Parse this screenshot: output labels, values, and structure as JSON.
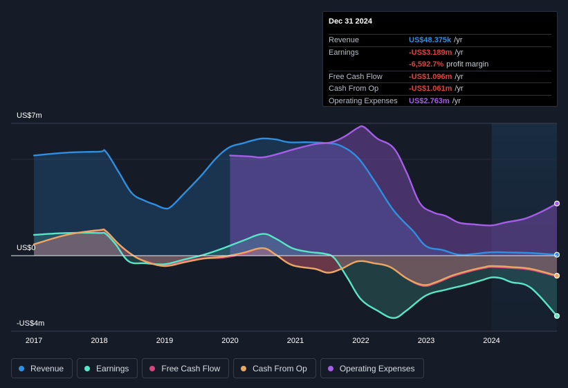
{
  "chart_data": {
    "type": "area",
    "title": "",
    "xlabel": "",
    "ylabel": "",
    "ylim": [
      -4,
      7
    ],
    "ytick_labels": [
      {
        "value": 7,
        "label": "US$7m"
      },
      {
        "value": 0,
        "label": "US$0"
      },
      {
        "value": -4,
        "label": "-US$4m"
      }
    ],
    "xticks": [
      {
        "value": 2017,
        "label": "2017"
      },
      {
        "value": 2018,
        "label": "2018"
      },
      {
        "value": 2019,
        "label": "2019"
      },
      {
        "value": 2020,
        "label": "2020"
      },
      {
        "value": 2021,
        "label": "2021"
      },
      {
        "value": 2022,
        "label": "2022"
      },
      {
        "value": 2023,
        "label": "2023"
      },
      {
        "value": 2024,
        "label": "2024"
      }
    ],
    "xlim": [
      2016.65,
      2025.0
    ],
    "highlight_start": 2024.0,
    "series": [
      {
        "name": "Revenue",
        "key": "revenue",
        "color": "#2f8fe0",
        "points": [
          [
            2017.0,
            5.3
          ],
          [
            2017.5,
            5.45
          ],
          [
            2018.0,
            5.5
          ],
          [
            2018.1,
            5.5
          ],
          [
            2018.3,
            4.4
          ],
          [
            2018.5,
            3.3
          ],
          [
            2018.7,
            2.9
          ],
          [
            2018.85,
            2.7
          ],
          [
            2019.0,
            2.5
          ],
          [
            2019.1,
            2.6
          ],
          [
            2019.3,
            3.3
          ],
          [
            2019.55,
            4.2
          ],
          [
            2019.8,
            5.2
          ],
          [
            2020.0,
            5.75
          ],
          [
            2020.2,
            5.95
          ],
          [
            2020.35,
            6.1
          ],
          [
            2020.5,
            6.2
          ],
          [
            2020.7,
            6.15
          ],
          [
            2020.9,
            6.0
          ],
          [
            2021.2,
            6.0
          ],
          [
            2021.5,
            5.95
          ],
          [
            2021.7,
            5.8
          ],
          [
            2021.95,
            5.2
          ],
          [
            2022.2,
            4.0
          ],
          [
            2022.5,
            2.4
          ],
          [
            2022.8,
            1.3
          ],
          [
            2023.0,
            0.5
          ],
          [
            2023.25,
            0.3
          ],
          [
            2023.5,
            0.05
          ],
          [
            2023.75,
            0.1
          ],
          [
            2024.0,
            0.18
          ],
          [
            2024.3,
            0.17
          ],
          [
            2024.6,
            0.14
          ],
          [
            2025.0,
            0.048
          ]
        ]
      },
      {
        "name": "Earnings",
        "key": "earnings",
        "color": "#59e6c7",
        "points": [
          [
            2017.0,
            1.1
          ],
          [
            2017.5,
            1.2
          ],
          [
            2018.0,
            1.2
          ],
          [
            2018.1,
            1.15
          ],
          [
            2018.25,
            0.6
          ],
          [
            2018.45,
            -0.3
          ],
          [
            2018.7,
            -0.4
          ],
          [
            2019.0,
            -0.45
          ],
          [
            2019.3,
            -0.2
          ],
          [
            2019.6,
            0.05
          ],
          [
            2019.9,
            0.4
          ],
          [
            2020.2,
            0.8
          ],
          [
            2020.5,
            1.15
          ],
          [
            2020.7,
            0.9
          ],
          [
            2020.95,
            0.4
          ],
          [
            2021.2,
            0.2
          ],
          [
            2021.45,
            0.1
          ],
          [
            2021.6,
            -0.15
          ],
          [
            2021.8,
            -1.2
          ],
          [
            2022.0,
            -2.3
          ],
          [
            2022.25,
            -2.9
          ],
          [
            2022.5,
            -3.3
          ],
          [
            2022.7,
            -2.9
          ],
          [
            2023.0,
            -2.1
          ],
          [
            2023.3,
            -1.8
          ],
          [
            2023.6,
            -1.55
          ],
          [
            2023.85,
            -1.3
          ],
          [
            2024.0,
            -1.15
          ],
          [
            2024.15,
            -1.2
          ],
          [
            2024.3,
            -1.4
          ],
          [
            2024.6,
            -1.7
          ],
          [
            2025.0,
            -3.19
          ]
        ]
      },
      {
        "name": "Free Cash Flow",
        "key": "fcf",
        "color": "#d6457f",
        "points": [
          [
            2017.0,
            0.6
          ],
          [
            2017.5,
            1.1
          ],
          [
            2018.0,
            1.35
          ],
          [
            2018.1,
            1.3
          ],
          [
            2018.3,
            0.6
          ],
          [
            2018.5,
            0.05
          ],
          [
            2018.7,
            -0.3
          ],
          [
            2019.0,
            -0.5
          ],
          [
            2019.3,
            -0.3
          ],
          [
            2019.6,
            -0.15
          ],
          [
            2019.9,
            -0.1
          ],
          [
            2020.2,
            0.1
          ],
          [
            2020.5,
            0.4
          ],
          [
            2020.7,
            0.05
          ],
          [
            2020.95,
            -0.5
          ],
          [
            2021.3,
            -0.7
          ],
          [
            2021.5,
            -0.9
          ],
          [
            2021.7,
            -0.7
          ],
          [
            2021.95,
            -0.3
          ],
          [
            2022.2,
            -0.4
          ],
          [
            2022.45,
            -0.6
          ],
          [
            2022.7,
            -1.2
          ],
          [
            2022.95,
            -1.6
          ],
          [
            2023.15,
            -1.45
          ],
          [
            2023.4,
            -1.1
          ],
          [
            2023.7,
            -0.8
          ],
          [
            2023.9,
            -0.65
          ],
          [
            2024.0,
            -0.6
          ],
          [
            2024.3,
            -0.65
          ],
          [
            2024.6,
            -0.75
          ],
          [
            2025.0,
            -1.1
          ]
        ]
      },
      {
        "name": "Cash From Op",
        "key": "cfo",
        "color": "#e8a863",
        "points": [
          [
            2017.0,
            0.6
          ],
          [
            2017.5,
            1.1
          ],
          [
            2018.0,
            1.35
          ],
          [
            2018.1,
            1.3
          ],
          [
            2018.3,
            0.6
          ],
          [
            2018.5,
            0.05
          ],
          [
            2018.7,
            -0.3
          ],
          [
            2019.0,
            -0.55
          ],
          [
            2019.3,
            -0.35
          ],
          [
            2019.6,
            -0.15
          ],
          [
            2019.9,
            -0.05
          ],
          [
            2020.2,
            0.15
          ],
          [
            2020.5,
            0.4
          ],
          [
            2020.7,
            0.05
          ],
          [
            2020.95,
            -0.5
          ],
          [
            2021.3,
            -0.7
          ],
          [
            2021.5,
            -0.9
          ],
          [
            2021.7,
            -0.7
          ],
          [
            2021.95,
            -0.3
          ],
          [
            2022.2,
            -0.4
          ],
          [
            2022.45,
            -0.6
          ],
          [
            2022.7,
            -1.2
          ],
          [
            2022.95,
            -1.55
          ],
          [
            2023.15,
            -1.4
          ],
          [
            2023.4,
            -1.05
          ],
          [
            2023.7,
            -0.75
          ],
          [
            2023.9,
            -0.6
          ],
          [
            2024.0,
            -0.55
          ],
          [
            2024.3,
            -0.6
          ],
          [
            2024.6,
            -0.7
          ],
          [
            2025.0,
            -1.06
          ]
        ]
      },
      {
        "name": "Operating Expenses",
        "key": "opex",
        "color": "#a55fe6",
        "points": [
          [
            2020.0,
            5.3
          ],
          [
            2020.3,
            5.25
          ],
          [
            2020.5,
            5.2
          ],
          [
            2020.75,
            5.4
          ],
          [
            2021.0,
            5.65
          ],
          [
            2021.3,
            5.9
          ],
          [
            2021.55,
            6.0
          ],
          [
            2021.75,
            6.3
          ],
          [
            2021.95,
            6.75
          ],
          [
            2022.05,
            6.8
          ],
          [
            2022.25,
            6.2
          ],
          [
            2022.5,
            5.7
          ],
          [
            2022.7,
            4.4
          ],
          [
            2022.9,
            2.8
          ],
          [
            2023.1,
            2.3
          ],
          [
            2023.3,
            2.1
          ],
          [
            2023.5,
            1.75
          ],
          [
            2023.75,
            1.65
          ],
          [
            2024.0,
            1.6
          ],
          [
            2024.2,
            1.75
          ],
          [
            2024.5,
            1.95
          ],
          [
            2024.75,
            2.3
          ],
          [
            2025.0,
            2.76
          ]
        ]
      }
    ]
  },
  "tooltip": {
    "date": "Dec 31 2024",
    "rows": [
      {
        "label": "Revenue",
        "value": "US$48.375k",
        "unit": "/yr",
        "color": "#2f8fe0"
      },
      {
        "label": "Earnings",
        "value": "-US$3.189m",
        "unit": "/yr",
        "color": "#e0423f"
      },
      {
        "label": "",
        "value": "-6,592.7%",
        "unit": "profit margin",
        "color": "#e0423f"
      },
      {
        "label": "Free Cash Flow",
        "value": "-US$1.096m",
        "unit": "/yr",
        "color": "#e0423f"
      },
      {
        "label": "Cash From Op",
        "value": "-US$1.061m",
        "unit": "/yr",
        "color": "#e0423f"
      },
      {
        "label": "Operating Expenses",
        "value": "US$2.763m",
        "unit": "/yr",
        "color": "#a55fe6"
      }
    ]
  },
  "legend": [
    {
      "label": "Revenue",
      "color": "#2f8fe0"
    },
    {
      "label": "Earnings",
      "color": "#59e6c7"
    },
    {
      "label": "Free Cash Flow",
      "color": "#d6457f"
    },
    {
      "label": "Cash From Op",
      "color": "#e8a863"
    },
    {
      "label": "Operating Expenses",
      "color": "#a55fe6"
    }
  ]
}
